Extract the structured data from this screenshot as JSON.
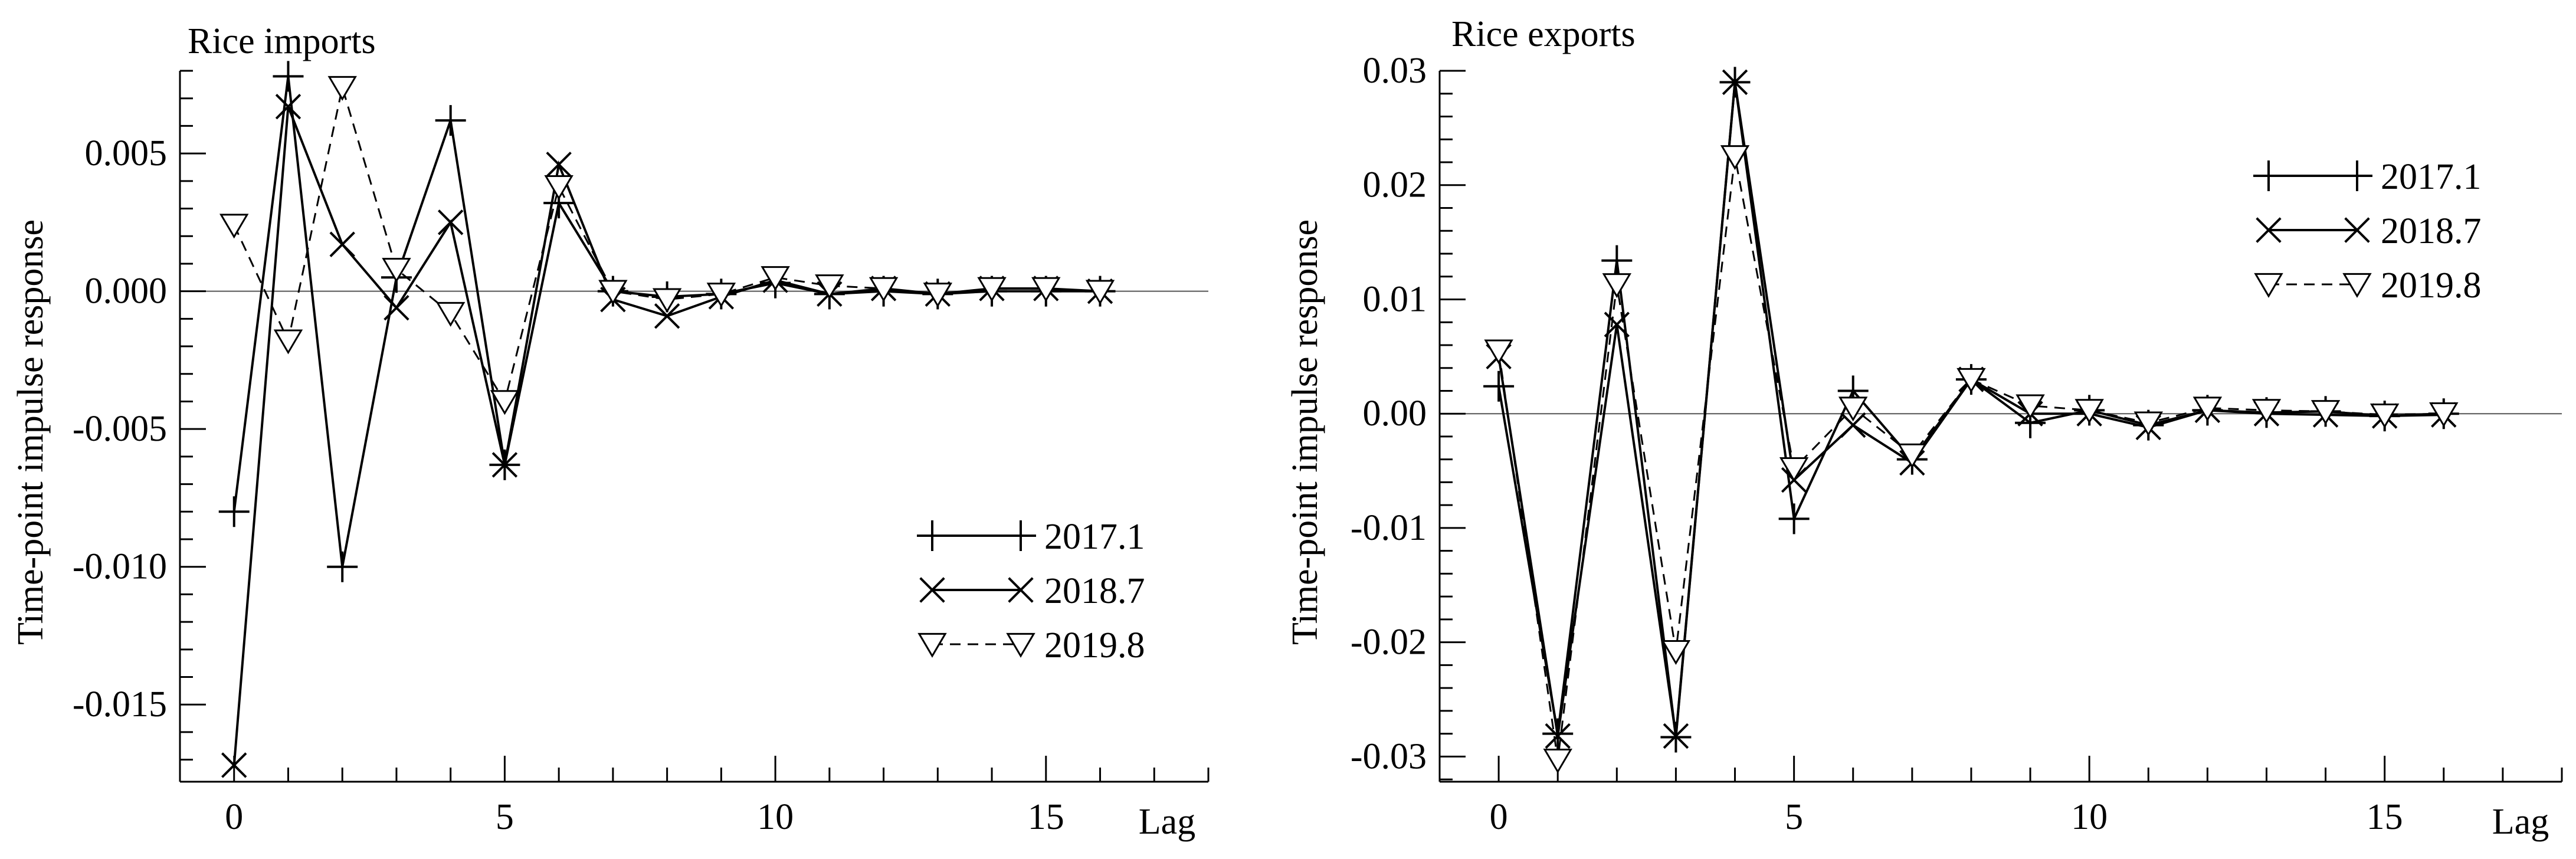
{
  "chart_data": [
    {
      "type": "line",
      "title": "Rice imports",
      "xlabel": "Lag",
      "ylabel": "Time-point impulse response",
      "xlim": [
        -1,
        18
      ],
      "ylim": [
        -0.0178,
        0.008
      ],
      "xticks": [
        0,
        5,
        10,
        15
      ],
      "xtick_labels": [
        "0",
        "5",
        "10",
        "15"
      ],
      "yticks": [
        -0.015,
        -0.01,
        -0.005,
        0.0,
        0.005
      ],
      "ytick_labels": [
        "-0.015",
        "-0.010",
        "-0.005",
        "0.000",
        "0.005"
      ],
      "zero_line": true,
      "legend_position": "lower-right",
      "x": [
        0,
        1,
        2,
        3,
        4,
        5,
        6,
        7,
        8,
        9,
        10,
        11,
        12,
        13,
        14,
        15,
        16
      ],
      "series": [
        {
          "name": "2017.1",
          "marker": "plus",
          "dash": "solid",
          "values": [
            -0.008,
            0.0078,
            -0.01,
            0.0005,
            0.0062,
            -0.0063,
            0.0032,
            0.0,
            -0.0002,
            -0.0001,
            0.0003,
            -0.0001,
            0.0,
            -0.0001,
            0.0,
            0.0,
            0.0
          ]
        },
        {
          "name": "2018.7",
          "marker": "x",
          "dash": "solid",
          "values": [
            -0.0172,
            0.0067,
            0.0017,
            -0.0006,
            0.0025,
            -0.0063,
            0.0046,
            -0.0003,
            -0.0009,
            -0.0002,
            0.0004,
            -0.0001,
            0.0001,
            -0.0001,
            0.0001,
            0.0001,
            0.0
          ]
        },
        {
          "name": "2019.8",
          "marker": "triangle-down",
          "dash": "dashed",
          "values": [
            0.0024,
            -0.0018,
            0.0074,
            0.0008,
            -0.0008,
            -0.004,
            0.0038,
            0.0,
            -0.0003,
            -0.0001,
            0.0005,
            0.0002,
            0.0001,
            -0.0001,
            0.0001,
            0.0001,
            0.0
          ]
        }
      ]
    },
    {
      "type": "line",
      "title": "Rice exports",
      "xlabel": "Lag",
      "ylabel": "Time-point impulse response",
      "xlim": [
        -1,
        18
      ],
      "ylim": [
        -0.0322,
        0.03
      ],
      "xticks": [
        0,
        5,
        10,
        15
      ],
      "xtick_labels": [
        "0",
        "5",
        "10",
        "15"
      ],
      "yticks": [
        -0.03,
        -0.02,
        -0.01,
        0.0,
        0.01,
        0.02,
        0.03
      ],
      "ytick_labels": [
        "-0.03",
        "-0.02",
        "-0.01",
        "0.00",
        "0.01",
        "0.02",
        "0.03"
      ],
      "zero_line": true,
      "legend_position": "upper-right",
      "x": [
        0,
        1,
        2,
        3,
        4,
        5,
        6,
        7,
        8,
        9,
        10,
        11,
        12,
        13,
        14,
        15,
        16
      ],
      "series": [
        {
          "name": "2017.1",
          "marker": "plus",
          "dash": "solid",
          "values": [
            0.0024,
            -0.028,
            0.0134,
            -0.0283,
            0.029,
            -0.0092,
            0.002,
            -0.004,
            0.003,
            -0.0008,
            0.0003,
            -0.001,
            0.0003,
            0.0001,
            0.0002,
            -0.0002,
            0.0
          ]
        },
        {
          "name": "2018.7",
          "marker": "x",
          "dash": "solid",
          "values": [
            0.005,
            -0.0282,
            0.0078,
            -0.0282,
            0.029,
            -0.0058,
            -0.001,
            -0.0043,
            0.003,
            0.0,
            0.0,
            -0.0012,
            0.0003,
            0.0,
            -0.0001,
            -0.0002,
            -0.0001
          ]
        },
        {
          "name": "2019.8",
          "marker": "triangle-down",
          "dash": "dashed",
          "values": [
            0.0055,
            -0.0303,
            0.0113,
            -0.0208,
            0.0225,
            -0.0048,
            0.0005,
            -0.0036,
            0.003,
            0.0007,
            0.0003,
            -0.0008,
            0.0005,
            0.0003,
            0.0002,
            -0.0001,
            0.0
          ]
        }
      ]
    }
  ]
}
